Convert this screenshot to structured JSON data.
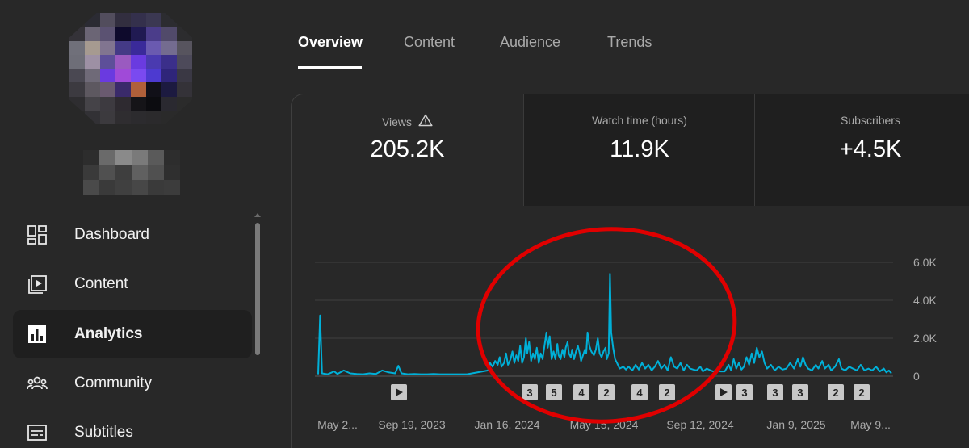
{
  "sidebar": {
    "items": [
      {
        "label": "Dashboard",
        "icon": "dashboard-icon"
      },
      {
        "label": "Content",
        "icon": "content-icon"
      },
      {
        "label": "Analytics",
        "icon": "analytics-icon",
        "active": true
      },
      {
        "label": "Community",
        "icon": "community-icon"
      },
      {
        "label": "Subtitles",
        "icon": "subtitles-icon"
      }
    ]
  },
  "tabs": [
    {
      "label": "Overview",
      "active": true
    },
    {
      "label": "Content"
    },
    {
      "label": "Audience"
    },
    {
      "label": "Trends"
    }
  ],
  "metrics": {
    "views": {
      "label": "Views",
      "value": "205.2K"
    },
    "watch_time": {
      "label": "Watch time (hours)",
      "value": "11.9K"
    },
    "subscribers": {
      "label": "Subscribers",
      "value": "+4.5K"
    }
  },
  "colors": {
    "line": "#00b0d8",
    "annotation": "#e00000"
  },
  "chart_data": {
    "type": "line",
    "ylim": [
      0,
      6000
    ],
    "yticks": [
      "6.0K",
      "4.0K",
      "2.0K",
      "0"
    ],
    "xticks": [
      "May 2...",
      "Sep 19, 2023",
      "Jan 16, 2024",
      "May 15, 2024",
      "Sep 12, 2024",
      "Jan 9, 2025",
      "May 9..."
    ],
    "markers": [
      {
        "type": "play"
      },
      {
        "type": "count",
        "label": "3"
      },
      {
        "type": "count",
        "label": "5"
      },
      {
        "type": "count",
        "label": "4"
      },
      {
        "type": "count",
        "label": "2"
      },
      {
        "type": "count",
        "label": "4"
      },
      {
        "type": "count",
        "label": "2"
      },
      {
        "type": "play"
      },
      {
        "type": "count",
        "label": "3"
      },
      {
        "type": "count",
        "label": "3"
      },
      {
        "type": "count",
        "label": "3"
      },
      {
        "type": "count",
        "label": "2"
      },
      {
        "type": "count",
        "label": "2"
      }
    ],
    "series": [
      {
        "points": [
          [
            0,
            100
          ],
          [
            3,
            3200
          ],
          [
            6,
            150
          ],
          [
            15,
            100
          ],
          [
            25,
            250
          ],
          [
            30,
            120
          ],
          [
            40,
            300
          ],
          [
            50,
            150
          ],
          [
            60,
            120
          ],
          [
            70,
            100
          ],
          [
            80,
            150
          ],
          [
            90,
            120
          ],
          [
            100,
            300
          ],
          [
            110,
            200
          ],
          [
            120,
            150
          ],
          [
            125,
            550
          ],
          [
            130,
            150
          ],
          [
            140,
            100
          ],
          [
            150,
            120
          ],
          [
            160,
            100
          ],
          [
            170,
            100
          ],
          [
            180,
            120
          ],
          [
            190,
            100
          ],
          [
            200,
            100
          ],
          [
            210,
            100
          ],
          [
            220,
            100
          ],
          [
            228,
            100
          ],
          [
            232,
            100
          ],
          [
            265,
            300
          ],
          [
            268,
            700
          ],
          [
            272,
            500
          ],
          [
            276,
            800
          ],
          [
            280,
            600
          ],
          [
            283,
            1000
          ],
          [
            286,
            500
          ],
          [
            290,
            700
          ],
          [
            293,
            1200
          ],
          [
            296,
            600
          ],
          [
            300,
            900
          ],
          [
            303,
            1300
          ],
          [
            306,
            700
          ],
          [
            309,
            1100
          ],
          [
            312,
            800
          ],
          [
            315,
            1600
          ],
          [
            318,
            700
          ],
          [
            321,
            1000
          ],
          [
            324,
            2000
          ],
          [
            326,
            1200
          ],
          [
            329,
            1800
          ],
          [
            332,
            800
          ],
          [
            335,
            1200
          ],
          [
            338,
            900
          ],
          [
            341,
            1500
          ],
          [
            344,
            700
          ],
          [
            347,
            1200
          ],
          [
            350,
            900
          ],
          [
            353,
            1600
          ],
          [
            356,
            2300
          ],
          [
            358,
            1500
          ],
          [
            361,
            2100
          ],
          [
            364,
            900
          ],
          [
            367,
            1300
          ],
          [
            370,
            900
          ],
          [
            373,
            1700
          ],
          [
            375,
            1100
          ],
          [
            378,
            900
          ],
          [
            381,
            1400
          ],
          [
            384,
            1000
          ],
          [
            386,
            1500
          ],
          [
            389,
            1800
          ],
          [
            391,
            1200
          ],
          [
            394,
            1000
          ],
          [
            396,
            1400
          ],
          [
            399,
            900
          ],
          [
            402,
            1300
          ],
          [
            405,
            1600
          ],
          [
            408,
            1200
          ],
          [
            410,
            800
          ],
          [
            413,
            1100
          ],
          [
            416,
            1400
          ],
          [
            418,
            1200
          ],
          [
            420,
            2300
          ],
          [
            423,
            1600
          ],
          [
            426,
            1300
          ],
          [
            430,
            1100
          ],
          [
            433,
            1400
          ],
          [
            436,
            2000
          ],
          [
            439,
            1200
          ],
          [
            442,
            1000
          ],
          [
            445,
            1300
          ],
          [
            448,
            1500
          ],
          [
            450,
            900
          ],
          [
            453,
            1200
          ],
          [
            455,
            5400
          ],
          [
            457,
            2300
          ],
          [
            460,
            1500
          ],
          [
            463,
            900
          ],
          [
            466,
            700
          ],
          [
            470,
            400
          ],
          [
            476,
            500
          ],
          [
            480,
            350
          ],
          [
            484,
            500
          ],
          [
            490,
            300
          ],
          [
            495,
            600
          ],
          [
            500,
            350
          ],
          [
            505,
            700
          ],
          [
            510,
            400
          ],
          [
            515,
            600
          ],
          [
            520,
            300
          ],
          [
            525,
            500
          ],
          [
            530,
            800
          ],
          [
            535,
            400
          ],
          [
            540,
            600
          ],
          [
            545,
            300
          ],
          [
            550,
            1000
          ],
          [
            555,
            500
          ],
          [
            560,
            400
          ],
          [
            565,
            700
          ],
          [
            570,
            300
          ],
          [
            575,
            600
          ],
          [
            580,
            400
          ],
          [
            585,
            350
          ],
          [
            590,
            300
          ],
          [
            596,
            500
          ],
          [
            600,
            250
          ],
          [
            606,
            400
          ],
          [
            612,
            300
          ],
          [
            616,
            250
          ],
          [
            622,
            300
          ],
          [
            628,
            250
          ],
          [
            634,
            250
          ],
          [
            640,
            600
          ],
          [
            644,
            300
          ],
          [
            648,
            900
          ],
          [
            652,
            400
          ],
          [
            656,
            700
          ],
          [
            660,
            350
          ],
          [
            664,
            500
          ],
          [
            668,
            1000
          ],
          [
            672,
            600
          ],
          [
            676,
            1200
          ],
          [
            680,
            700
          ],
          [
            684,
            1500
          ],
          [
            688,
            1000
          ],
          [
            692,
            1300
          ],
          [
            696,
            700
          ],
          [
            700,
            400
          ],
          [
            706,
            600
          ],
          [
            712,
            300
          ],
          [
            718,
            500
          ],
          [
            724,
            350
          ],
          [
            730,
            400
          ],
          [
            736,
            700
          ],
          [
            742,
            400
          ],
          [
            748,
            900
          ],
          [
            752,
            500
          ],
          [
            756,
            1000
          ],
          [
            760,
            600
          ],
          [
            764,
            400
          ],
          [
            770,
            300
          ],
          [
            776,
            600
          ],
          [
            780,
            400
          ],
          [
            786,
            800
          ],
          [
            790,
            400
          ],
          [
            796,
            600
          ],
          [
            800,
            300
          ],
          [
            806,
            500
          ],
          [
            812,
            900
          ],
          [
            816,
            400
          ],
          [
            822,
            300
          ],
          [
            828,
            500
          ],
          [
            834,
            400
          ],
          [
            840,
            300
          ],
          [
            846,
            600
          ],
          [
            852,
            300
          ],
          [
            858,
            400
          ],
          [
            864,
            300
          ],
          [
            870,
            500
          ],
          [
            876,
            250
          ],
          [
            882,
            400
          ],
          [
            886,
            200
          ],
          [
            890,
            300
          ],
          [
            894,
            150
          ]
        ]
      }
    ]
  }
}
